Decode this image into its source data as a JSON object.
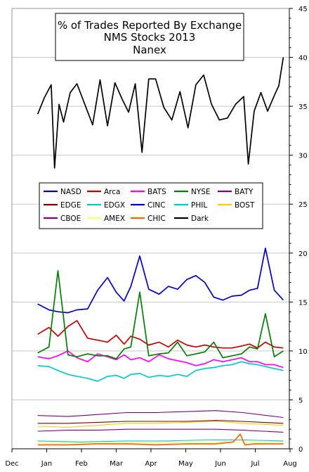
{
  "chart_data": {
    "type": "line",
    "title": [
      "% of Trades Reported By Exchange",
      "NMS Stocks 2013",
      "Nanex"
    ],
    "xlabel": "",
    "ylabel": "",
    "x_tick_labels": [
      "Dec",
      "Jan",
      "Feb",
      "Mar",
      "Apr",
      "May",
      "Jun",
      "Jul",
      "Aug"
    ],
    "y_ticks": [
      0,
      5,
      10,
      15,
      20,
      25,
      30,
      35,
      40,
      45
    ],
    "ylim": [
      0,
      45
    ],
    "grid": true,
    "legend_position": "left",
    "x_start": "2012-12-01",
    "series": [
      {
        "name": "NASD",
        "color": "#0000cc",
        "x": [
          "2012-12-24",
          "2013-01-03",
          "2013-01-11",
          "2013-01-20",
          "2013-01-28",
          "2013-02-06",
          "2013-02-14",
          "2013-02-22",
          "2013-03-01",
          "2013-03-08",
          "2013-03-14",
          "2013-03-22",
          "2013-03-30",
          "2013-04-08",
          "2013-04-16",
          "2013-04-24",
          "2013-05-02",
          "2013-05-10",
          "2013-05-18",
          "2013-05-26",
          "2013-06-03",
          "2013-06-11",
          "2013-06-19",
          "2013-06-26",
          "2013-07-03",
          "2013-07-10",
          "2013-07-18",
          "2013-07-26"
        ],
        "y": [
          14.8,
          14.2,
          14.0,
          13.9,
          14.2,
          14.3,
          16.2,
          17.5,
          16.0,
          15.1,
          16.6,
          19.7,
          16.3,
          15.8,
          16.6,
          16.3,
          17.3,
          17.7,
          17.0,
          15.5,
          15.2,
          15.6,
          15.7,
          16.2,
          16.4,
          20.5,
          16.2,
          15.2
        ]
      },
      {
        "name": "Arca",
        "color": "#cc0000",
        "x": [
          "2012-12-24",
          "2013-01-03",
          "2013-01-11",
          "2013-01-20",
          "2013-01-28",
          "2013-02-06",
          "2013-02-14",
          "2013-02-22",
          "2013-03-01",
          "2013-03-08",
          "2013-03-14",
          "2013-03-22",
          "2013-03-30",
          "2013-04-08",
          "2013-04-16",
          "2013-04-24",
          "2013-05-02",
          "2013-05-10",
          "2013-05-18",
          "2013-05-26",
          "2013-06-03",
          "2013-06-11",
          "2013-06-19",
          "2013-06-26",
          "2013-07-03",
          "2013-07-10",
          "2013-07-18",
          "2013-07-26"
        ],
        "y": [
          11.7,
          12.4,
          11.5,
          12.5,
          13.1,
          11.3,
          11.1,
          10.9,
          11.6,
          10.7,
          11.5,
          11.2,
          10.6,
          10.9,
          10.4,
          11.1,
          10.6,
          10.4,
          10.6,
          10.4,
          10.3,
          10.3,
          10.5,
          10.7,
          10.3,
          10.9,
          10.4,
          10.3
        ]
      },
      {
        "name": "BATS",
        "color": "#ff00ff",
        "x": [
          "2012-12-24",
          "2013-01-03",
          "2013-01-11",
          "2013-01-20",
          "2013-01-28",
          "2013-02-06",
          "2013-02-14",
          "2013-02-22",
          "2013-03-01",
          "2013-03-08",
          "2013-03-14",
          "2013-03-22",
          "2013-03-30",
          "2013-04-08",
          "2013-04-16",
          "2013-04-24",
          "2013-05-02",
          "2013-05-10",
          "2013-05-18",
          "2013-05-26",
          "2013-06-03",
          "2013-06-11",
          "2013-06-19",
          "2013-06-26",
          "2013-07-03",
          "2013-07-10",
          "2013-07-18",
          "2013-07-26"
        ],
        "y": [
          9.4,
          9.2,
          9.5,
          10.0,
          9.3,
          8.9,
          9.7,
          9.4,
          9.1,
          9.6,
          9.1,
          9.3,
          8.9,
          9.6,
          9.2,
          9.0,
          8.8,
          8.5,
          8.7,
          9.1,
          8.9,
          9.1,
          9.3,
          8.9,
          8.9,
          8.6,
          8.6,
          8.3
        ]
      },
      {
        "name": "NYSE",
        "color": "#008000",
        "x": [
          "2012-12-24",
          "2013-01-03",
          "2013-01-11",
          "2013-01-20",
          "2013-01-28",
          "2013-02-06",
          "2013-02-14",
          "2013-02-22",
          "2013-03-01",
          "2013-03-08",
          "2013-03-14",
          "2013-03-22",
          "2013-03-30",
          "2013-04-08",
          "2013-04-16",
          "2013-04-24",
          "2013-05-02",
          "2013-05-10",
          "2013-05-18",
          "2013-05-26",
          "2013-06-03",
          "2013-06-11",
          "2013-06-19",
          "2013-06-26",
          "2013-07-03",
          "2013-07-10",
          "2013-07-18",
          "2013-07-26"
        ],
        "y": [
          9.8,
          10.4,
          18.2,
          9.6,
          9.4,
          9.7,
          9.5,
          9.5,
          9.2,
          10.2,
          10.4,
          16.0,
          9.5,
          9.7,
          9.8,
          10.9,
          9.5,
          9.7,
          9.9,
          10.9,
          9.3,
          9.5,
          9.7,
          10.4,
          10.2,
          13.8,
          9.4,
          10.0
        ]
      },
      {
        "name": "BATY",
        "color": "#800080",
        "x": [
          "2012-12-24",
          "2013-01-20",
          "2013-02-14",
          "2013-03-10",
          "2013-04-05",
          "2013-05-02",
          "2013-05-28",
          "2013-06-20",
          "2013-07-26"
        ],
        "y": [
          3.4,
          3.3,
          3.5,
          3.7,
          3.7,
          3.8,
          3.9,
          3.7,
          3.2
        ]
      },
      {
        "name": "EDGE",
        "color": "#800000",
        "x": [
          "2012-12-24",
          "2013-01-20",
          "2013-02-14",
          "2013-03-10",
          "2013-04-05",
          "2013-05-02",
          "2013-05-28",
          "2013-06-20",
          "2013-07-26"
        ],
        "y": [
          2.6,
          2.6,
          2.7,
          2.8,
          2.8,
          2.8,
          2.9,
          2.8,
          2.6
        ]
      },
      {
        "name": "EDGX",
        "color": "#00cccc",
        "x": [
          "2012-12-24",
          "2013-01-03",
          "2013-01-11",
          "2013-01-20",
          "2013-01-28",
          "2013-02-06",
          "2013-02-14",
          "2013-02-22",
          "2013-03-01",
          "2013-03-08",
          "2013-03-14",
          "2013-03-22",
          "2013-03-30",
          "2013-04-08",
          "2013-04-16",
          "2013-04-24",
          "2013-05-02",
          "2013-05-10",
          "2013-05-18",
          "2013-05-26",
          "2013-06-03",
          "2013-06-11",
          "2013-06-19",
          "2013-06-26",
          "2013-07-03",
          "2013-07-10",
          "2013-07-18",
          "2013-07-26"
        ],
        "y": [
          8.5,
          8.4,
          8.0,
          7.6,
          7.4,
          7.2,
          6.9,
          7.4,
          7.5,
          7.2,
          7.6,
          7.7,
          7.3,
          7.5,
          7.4,
          7.6,
          7.4,
          8.0,
          8.2,
          8.3,
          8.5,
          8.6,
          8.9,
          8.7,
          8.6,
          8.4,
          8.2,
          8.0
        ]
      },
      {
        "name": "CINC",
        "color": "#0000cc",
        "x": [],
        "y": []
      },
      {
        "name": "PHIL",
        "color": "#00cccc",
        "x": [
          "2012-12-24",
          "2013-02-01",
          "2013-03-10",
          "2013-04-15",
          "2013-05-20",
          "2013-06-20",
          "2013-07-26"
        ],
        "y": [
          0.8,
          0.7,
          0.8,
          0.8,
          0.9,
          0.9,
          0.8
        ]
      },
      {
        "name": "BOST",
        "color": "#ffcc00",
        "x": [
          "2012-12-24",
          "2013-01-20",
          "2013-02-14",
          "2013-03-10",
          "2013-04-05",
          "2013-05-02",
          "2013-05-28",
          "2013-06-20",
          "2013-07-26"
        ],
        "y": [
          2.3,
          2.2,
          2.4,
          2.6,
          2.6,
          2.7,
          2.8,
          2.6,
          2.4
        ]
      },
      {
        "name": "CBOE",
        "color": "#800080",
        "x": [
          "2012-12-24",
          "2013-01-20",
          "2013-02-14",
          "2013-03-10",
          "2013-04-05",
          "2013-05-02",
          "2013-05-28",
          "2013-06-20",
          "2013-07-26"
        ],
        "y": [
          1.8,
          1.9,
          1.9,
          2.0,
          2.0,
          2.0,
          2.0,
          1.9,
          1.7
        ]
      },
      {
        "name": "AMEX",
        "color": "#ffff66",
        "x": [
          "2012-12-24",
          "2013-02-01",
          "2013-03-10",
          "2013-04-15",
          "2013-05-20",
          "2013-06-20",
          "2013-07-26"
        ],
        "y": [
          0.6,
          0.6,
          0.6,
          0.7,
          0.7,
          0.7,
          0.7
        ]
      },
      {
        "name": "CHIC",
        "color": "#ff6600",
        "x": [
          "2012-12-24",
          "2013-01-20",
          "2013-02-14",
          "2013-03-10",
          "2013-04-05",
          "2013-05-02",
          "2013-05-28",
          "2013-06-12",
          "2013-06-18",
          "2013-06-22",
          "2013-07-01",
          "2013-07-26"
        ],
        "y": [
          0.4,
          0.4,
          0.5,
          0.5,
          0.4,
          0.5,
          0.5,
          0.7,
          1.5,
          0.4,
          0.5,
          0.5
        ]
      },
      {
        "name": "Dark",
        "color": "#000000",
        "x": [
          "2012-12-24",
          "2012-12-30",
          "2013-01-05",
          "2013-01-08",
          "2013-01-12",
          "2013-01-16",
          "2013-01-22",
          "2013-01-28",
          "2013-02-04",
          "2013-02-10",
          "2013-02-16",
          "2013-02-22",
          "2013-02-28",
          "2013-03-06",
          "2013-03-12",
          "2013-03-18",
          "2013-03-24",
          "2013-03-30",
          "2013-04-05",
          "2013-04-12",
          "2013-04-19",
          "2013-04-26",
          "2013-05-03",
          "2013-05-10",
          "2013-05-17",
          "2013-05-24",
          "2013-05-31",
          "2013-06-07",
          "2013-06-14",
          "2013-06-21",
          "2013-06-25",
          "2013-06-30",
          "2013-07-06",
          "2013-07-12",
          "2013-07-18",
          "2013-07-22",
          "2013-07-26"
        ],
        "y": [
          34.2,
          35.9,
          37.2,
          28.7,
          35.2,
          33.4,
          36.4,
          37.3,
          35.1,
          33.1,
          37.7,
          33.0,
          37.4,
          35.8,
          34.4,
          37.3,
          30.3,
          37.8,
          37.8,
          34.9,
          33.6,
          36.5,
          32.8,
          37.2,
          38.2,
          35.2,
          33.6,
          33.8,
          35.2,
          36.0,
          29.1,
          34.5,
          36.4,
          34.5,
          36.1,
          37.1,
          40.0
        ]
      }
    ]
  }
}
